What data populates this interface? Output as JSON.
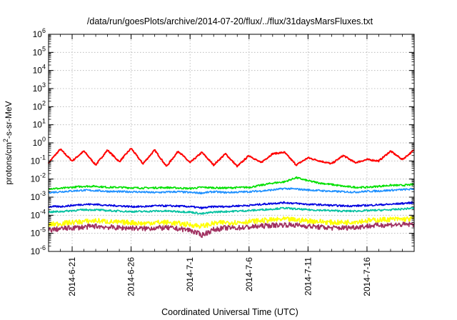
{
  "chart_data": {
    "type": "line",
    "title": "/data/run/goesPlots/archive/2014-07-20/flux/../flux/31daysMarsFluxes.txt",
    "xlabel": "Coordinated Universal Time (UTC)",
    "ylabel": "protons/cm²-s-sr-MeV",
    "y_scale": "log",
    "ylim": [
      1e-06,
      1000000.0
    ],
    "y_ticks": [
      {
        "base": "10",
        "exp": "-6"
      },
      {
        "base": "10",
        "exp": "-5"
      },
      {
        "base": "10",
        "exp": "-4"
      },
      {
        "base": "10",
        "exp": "-3"
      },
      {
        "base": "10",
        "exp": "-2"
      },
      {
        "base": "10",
        "exp": "-1"
      },
      {
        "base": "10",
        "exp": "0"
      },
      {
        "base": "10",
        "exp": "1"
      },
      {
        "base": "10",
        "exp": "2"
      },
      {
        "base": "10",
        "exp": "3"
      },
      {
        "base": "10",
        "exp": "4"
      },
      {
        "base": "10",
        "exp": "5"
      },
      {
        "base": "10",
        "exp": "6"
      }
    ],
    "xlim": [
      "2014-06-19",
      "2014-07-20"
    ],
    "x_ticks": [
      "2014-6-21",
      "2014-6-26",
      "2014-7-1",
      "2014-7-6",
      "2014-7-11",
      "2014-7-16"
    ],
    "x_tick_dates": [
      "2014-06-21",
      "2014-06-26",
      "2014-07-01",
      "2014-07-06",
      "2014-07-11",
      "2014-07-16"
    ],
    "grid": true,
    "legend": "none",
    "series": [
      {
        "color": "#ff0000",
        "level": 0.15,
        "values": [
          0.08,
          0.45,
          0.1,
          0.35,
          0.06,
          0.4,
          0.09,
          0.5,
          0.07,
          0.4,
          0.05,
          0.35,
          0.08,
          0.3,
          0.06,
          0.25,
          0.05,
          0.2,
          0.08,
          0.25,
          0.3,
          0.06,
          0.15,
          0.1,
          0.07,
          0.2,
          0.08,
          0.12,
          0.1,
          0.35,
          0.12,
          0.4
        ]
      },
      {
        "color": "#00e000",
        "level": 0.004,
        "values": [
          0.003,
          0.003,
          0.0035,
          0.004,
          0.004,
          0.0035,
          0.0035,
          0.0033,
          0.0032,
          0.0033,
          0.0034,
          0.0032,
          0.003,
          0.0035,
          0.0033,
          0.0032,
          0.0034,
          0.0035,
          0.0045,
          0.006,
          0.007,
          0.012,
          0.008,
          0.006,
          0.005,
          0.004,
          0.0035,
          0.0035,
          0.004,
          0.0045,
          0.0045,
          0.005
        ]
      },
      {
        "color": "#1e90ff",
        "level": 0.002,
        "values": [
          0.0018,
          0.002,
          0.0022,
          0.0024,
          0.0023,
          0.0021,
          0.002,
          0.002,
          0.0019,
          0.0018,
          0.0019,
          0.002,
          0.0018,
          0.0017,
          0.002,
          0.0018,
          0.0019,
          0.002,
          0.0022,
          0.0025,
          0.003,
          0.0028,
          0.0025,
          0.0023,
          0.0021,
          0.002,
          0.0019,
          0.0021,
          0.0022,
          0.0024,
          0.0026,
          0.0028
        ]
      },
      {
        "color": "#0000e0",
        "level": 0.0004,
        "values": [
          0.0003,
          0.0003,
          0.00035,
          0.0004,
          0.0004,
          0.00035,
          0.00033,
          0.0003,
          0.0003,
          0.00033,
          0.00033,
          0.00032,
          0.0003,
          0.00025,
          0.0003,
          0.0003,
          0.00033,
          0.00035,
          0.0004,
          0.00045,
          0.0005,
          0.00045,
          0.0004,
          0.00038,
          0.00035,
          0.00033,
          0.00033,
          0.00035,
          0.00038,
          0.0004,
          0.00045,
          0.0005
        ]
      },
      {
        "color": "#00c0a0",
        "level": 0.0002,
        "values": [
          0.00015,
          0.00016,
          0.00018,
          0.0002,
          0.0002,
          0.00018,
          0.00017,
          0.00016,
          0.00016,
          0.00017,
          0.00017,
          0.00016,
          0.00015,
          0.00012,
          0.00015,
          0.00016,
          0.00017,
          0.00018,
          0.0002,
          0.00022,
          0.00025,
          0.00022,
          0.0002,
          0.00019,
          0.00018,
          0.00017,
          0.00017,
          0.00018,
          0.00019,
          0.0002,
          0.00022,
          0.00025
        ]
      },
      {
        "color": "#ffff00",
        "level": 4e-05,
        "values": [
          3e-05,
          3.5e-05,
          4e-05,
          4.5e-05,
          5e-05,
          4.5e-05,
          4e-05,
          4e-05,
          3.5e-05,
          4e-05,
          4e-05,
          3.5e-05,
          3e-05,
          2.5e-05,
          3.5e-05,
          4e-05,
          4e-05,
          4.5e-05,
          5e-05,
          5.5e-05,
          6e-05,
          5.5e-05,
          5e-05,
          4.5e-05,
          4e-05,
          4e-05,
          4.5e-05,
          5e-05,
          5.5e-05,
          6e-05,
          6e-05,
          6.5e-05
        ]
      },
      {
        "color": "#a03060",
        "level": 2e-05,
        "values": [
          1.5e-05,
          1.8e-05,
          2e-05,
          2.2e-05,
          2.5e-05,
          2.2e-05,
          2e-05,
          2e-05,
          1.8e-05,
          2e-05,
          2e-05,
          1.8e-05,
          1.5e-05,
          8e-06,
          1.6e-05,
          2e-05,
          2e-05,
          2.2e-05,
          2.5e-05,
          2.8e-05,
          3e-05,
          2.8e-05,
          2.5e-05,
          2.2e-05,
          2e-05,
          2e-05,
          2.2e-05,
          2.5e-05,
          2.8e-05,
          3e-05,
          3e-05,
          3.2e-05
        ]
      }
    ],
    "series_dates_start": "2014-06-19",
    "series_step_days": 1
  }
}
